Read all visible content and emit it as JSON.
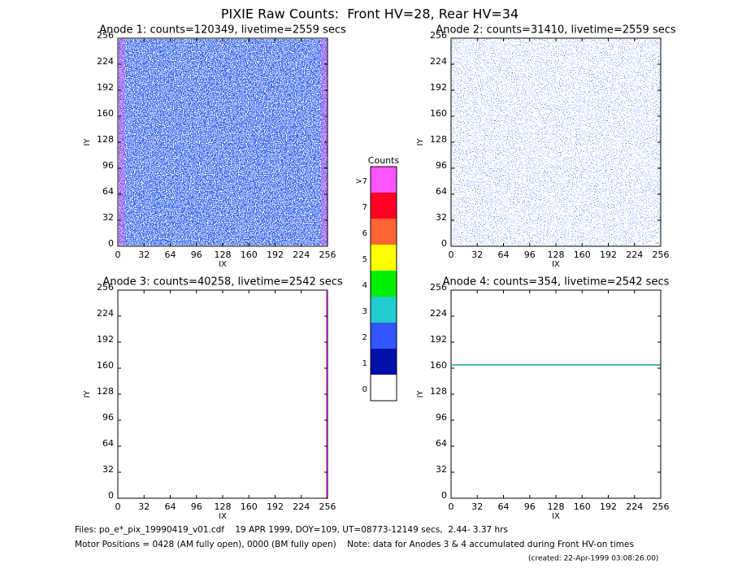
{
  "title": "PIXIE Raw Counts:  Front HV=28, Rear HV=34",
  "chart_data": [
    {
      "type": "heatmap",
      "title": "Anode 1: counts=120349, livetime=2559 secs",
      "xlabel": "IX",
      "ylabel": "IY",
      "xlim": [
        0,
        256
      ],
      "ylim": [
        0,
        256
      ],
      "xticks": [
        0,
        32,
        64,
        96,
        128,
        160,
        192,
        224,
        256
      ],
      "yticks": [
        0,
        32,
        64,
        96,
        128,
        160,
        192,
        224,
        256
      ]
    },
    {
      "type": "heatmap",
      "title": "Anode 2: counts=31410, livetime=2559 secs",
      "xlabel": "IX",
      "ylabel": "IY",
      "xlim": [
        0,
        256
      ],
      "ylim": [
        0,
        256
      ],
      "xticks": [
        0,
        32,
        64,
        96,
        128,
        160,
        192,
        224,
        256
      ],
      "yticks": [
        0,
        32,
        64,
        96,
        128,
        160,
        192,
        224,
        256
      ]
    },
    {
      "type": "heatmap",
      "title": "Anode 3: counts=40258, livetime=2542 secs",
      "xlabel": "IX",
      "ylabel": "IY",
      "xlim": [
        0,
        256
      ],
      "ylim": [
        0,
        256
      ],
      "xticks": [
        0,
        32,
        64,
        96,
        128,
        160,
        192,
        224,
        256
      ],
      "yticks": [
        0,
        32,
        64,
        96,
        128,
        160,
        192,
        224,
        256
      ]
    },
    {
      "type": "heatmap",
      "title": "Anode 4: counts=354, livetime=2542 secs",
      "xlabel": "IX",
      "ylabel": "IY",
      "xlim": [
        0,
        256
      ],
      "ylim": [
        0,
        256
      ],
      "xticks": [
        0,
        32,
        64,
        96,
        128,
        160,
        192,
        224,
        256
      ],
      "yticks": [
        0,
        32,
        64,
        96,
        128,
        160,
        192,
        224,
        256
      ]
    }
  ],
  "colorbar": {
    "title": "Counts",
    "labels": [
      ">7",
      "7",
      "6",
      "5",
      "4",
      "3",
      "2",
      "1",
      "0"
    ],
    "colors": [
      "#ff55ff",
      "#ff0022",
      "#ff6633",
      "#ffff00",
      "#00ee00",
      "#22cccc",
      "#3355ff",
      "#0011aa",
      "#ffffff"
    ]
  },
  "footer": [
    "Files: po_e*_pix_19990419_v01.cdf    19 APR 1999, DOY=109, UT=08773-12149 secs,  2.44- 3.37 hrs",
    "Motor Positions = 0428 (AM fully open), 0000 (BM fully open)    Note: data for Anodes 3 & 4 accumulated during Front HV-on times",
    "(created: 22-Apr-1999 03:08:26.00)"
  ]
}
